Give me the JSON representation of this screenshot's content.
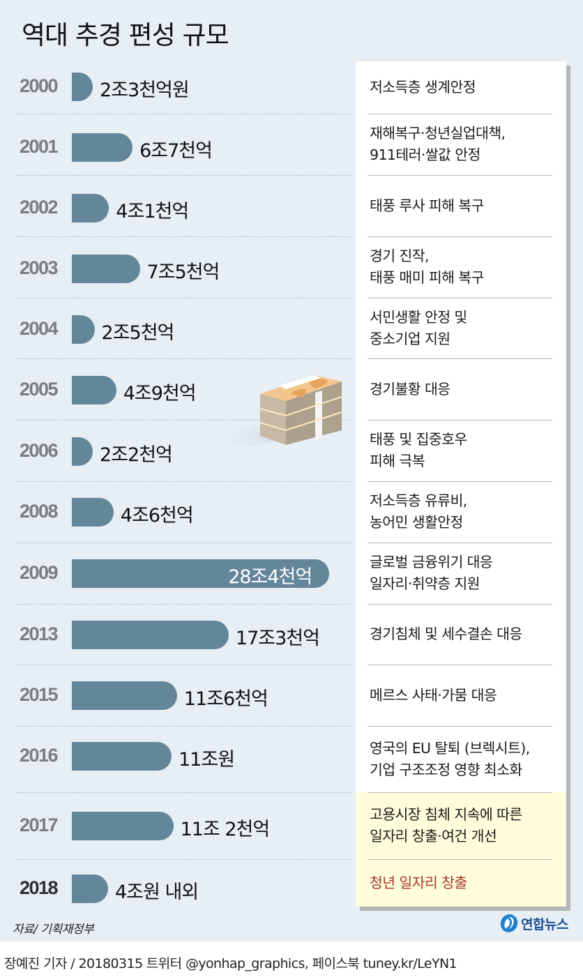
{
  "title": "역대 추경 편성 규모",
  "rows": [
    {
      "year": "2000",
      "amount": "2조3천억원",
      "value_trillion": 2.3,
      "desc": [
        "저소득층 생계안정"
      ]
    },
    {
      "year": "2001",
      "amount": "6조7천억",
      "value_trillion": 6.7,
      "desc": [
        "재해복구·청년실업대책,",
        "911테러·쌀값 안정"
      ]
    },
    {
      "year": "2002",
      "amount": "4조1천억",
      "value_trillion": 4.1,
      "desc": [
        "태풍 루사 피해 복구"
      ]
    },
    {
      "year": "2003",
      "amount": "7조5천억",
      "value_trillion": 7.5,
      "desc": [
        "경기 진작,",
        "태풍 매미 피해 복구"
      ]
    },
    {
      "year": "2004",
      "amount": "2조5천억",
      "value_trillion": 2.5,
      "desc": [
        "서민생활 안정 및",
        "중소기업 지원"
      ]
    },
    {
      "year": "2005",
      "amount": "4조9천억",
      "value_trillion": 4.9,
      "desc": [
        "경기불황 대응"
      ]
    },
    {
      "year": "2006",
      "amount": "2조2천억",
      "value_trillion": 2.2,
      "desc": [
        "태풍 및 집중호우",
        "피해 극복"
      ]
    },
    {
      "year": "2008",
      "amount": "4조6천억",
      "value_trillion": 4.6,
      "desc": [
        "저소득층 유류비,",
        "농어민 생활안정"
      ]
    },
    {
      "year": "2009",
      "amount": "28조4천억",
      "value_trillion": 28.4,
      "desc": [
        "글로벌 금융위기 대응",
        "일자리·취약층 지원"
      ]
    },
    {
      "year": "2013",
      "amount": "17조3천억",
      "value_trillion": 17.3,
      "desc": [
        "경기침체 및 세수결손 대응"
      ]
    },
    {
      "year": "2015",
      "amount": "11조6천억",
      "value_trillion": 11.6,
      "desc": [
        "메르스 사태·가뭄 대응"
      ]
    },
    {
      "year": "2016",
      "amount": "11조원",
      "value_trillion": 11.0,
      "desc": [
        "영국의 EU 탈퇴 (브렉시트),",
        "기업 구조조정 영향 최소화"
      ]
    },
    {
      "year": "2017",
      "amount": "11조 2천억",
      "value_trillion": 11.2,
      "desc": [
        "고용시장 침체 지속에 따른",
        "일자리 창출·여건 개선"
      ]
    },
    {
      "year": "2018",
      "amount": "4조원 내외",
      "value_trillion": 4.0,
      "desc": [
        "청년 일자리 창출"
      ]
    }
  ],
  "source": "자료/ 기획재정부",
  "logo": "연합뉴스",
  "credit": "장예진 기자 / 20180315 트위터 @yonhap_graphics, 페이스북 tuney.kr/LeYN1",
  "colors": {
    "bar": "#64869a",
    "background": "#e7eef4",
    "highlight_panel": "#fffcdb",
    "highlight_text": "#a53a2c",
    "logo": "#1a4f95"
  },
  "chart_data": {
    "type": "bar",
    "orientation": "horizontal",
    "title": "역대 추경 편성 규모",
    "xlabel": "",
    "ylabel": "",
    "unit": "조원 (trillion KRW)",
    "categories": [
      "2000",
      "2001",
      "2002",
      "2003",
      "2004",
      "2005",
      "2006",
      "2008",
      "2009",
      "2013",
      "2015",
      "2016",
      "2017",
      "2018"
    ],
    "values": [
      2.3,
      6.7,
      4.1,
      7.5,
      2.5,
      4.9,
      2.2,
      4.6,
      28.4,
      17.3,
      11.6,
      11.0,
      11.2,
      4.0
    ],
    "labels": [
      "2조3천억원",
      "6조7천억",
      "4조1천억",
      "7조5천억",
      "2조5천억",
      "4조9천억",
      "2조2천억",
      "4조6천억",
      "28조4천억",
      "17조3천억",
      "11조6천억",
      "11조원",
      "11조 2천억",
      "4조원 내외"
    ],
    "annotations": [
      "저소득층 생계안정",
      "재해복구·청년실업대책, 911테러·쌀값 안정",
      "태풍 루사 피해 복구",
      "경기 진작, 태풍 매미 피해 복구",
      "서민생활 안정 및 중소기업 지원",
      "경기불황 대응",
      "태풍 및 집중호우 피해 극복",
      "저소득층 유류비, 농어민 생활안정",
      "글로벌 금융위기 대응 일자리·취약층 지원",
      "경기침체 및 세수결손 대응",
      "메르스 사태·가뭄 대응",
      "영국의 EU 탈퇴 (브렉시트), 기업 구조조정 영향 최소화",
      "고용시장 침체 지속에 따른 일자리 창출·여건 개선",
      "청년 일자리 창출"
    ],
    "grid": false,
    "legend": "none",
    "source": "자료/ 기획재정부"
  }
}
